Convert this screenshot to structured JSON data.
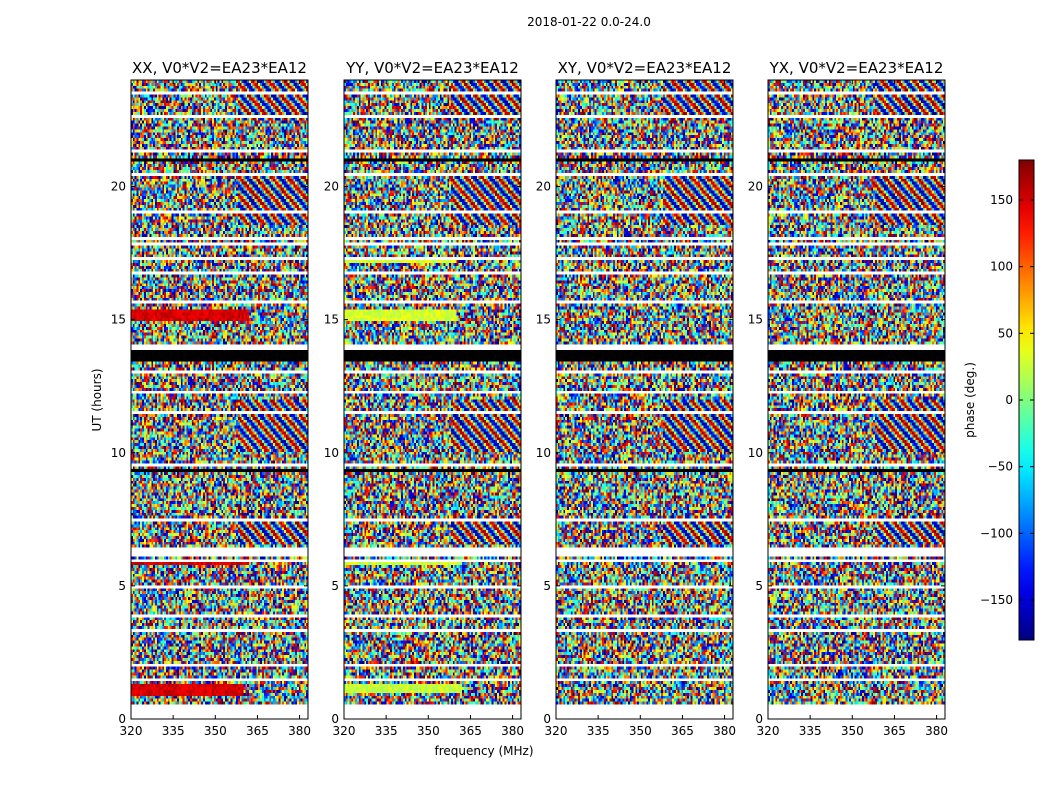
{
  "chart_data": {
    "type": "heatmap",
    "suptitle": "2018-01-22 0.0-24.0",
    "panels": [
      {
        "title": "XX, V0*V2=EA23*EA12",
        "product": "XX"
      },
      {
        "title": "YY, V0*V2=EA23*EA12",
        "product": "YY"
      },
      {
        "title": "XY, V0*V2=EA23*EA12",
        "product": "XY"
      },
      {
        "title": "YX, V0*V2=EA23*EA12",
        "product": "YX"
      }
    ],
    "xlabel": "frequency (MHz)",
    "ylabel": "UT (hours)",
    "xlim": [
      320,
      383
    ],
    "ylim": [
      0,
      24
    ],
    "xticks": [
      320,
      335,
      350,
      365,
      380
    ],
    "yticks": [
      0,
      5,
      10,
      15,
      20
    ],
    "colorbar": {
      "label": "phase (deg.)",
      "range": [
        -180,
        180
      ],
      "ticks": [
        -150,
        -100,
        -50,
        0,
        50,
        100,
        150
      ],
      "tick_labels": [
        "−150",
        "−100",
        "−50",
        "0",
        "50",
        "100",
        "150"
      ],
      "colormap": "jet"
    },
    "data_coverage_hours": [
      0.6,
      24.0
    ],
    "gaps_hours": [
      [
        1.4,
        1.5
      ],
      [
        1.95,
        2.05
      ],
      [
        3.25,
        3.35
      ],
      [
        3.55,
        3.65
      ],
      [
        3.85,
        3.95
      ],
      [
        4.95,
        5.05
      ],
      [
        5.85,
        5.95
      ],
      [
        6.1,
        6.4
      ],
      [
        7.45,
        7.55
      ],
      [
        9.45,
        9.55
      ],
      [
        11.5,
        11.6
      ],
      [
        12.2,
        12.3
      ],
      [
        12.95,
        13.05
      ],
      [
        13.9,
        14.1
      ],
      [
        15.6,
        15.7
      ],
      [
        16.7,
        16.8
      ],
      [
        17.2,
        17.3
      ],
      [
        17.75,
        17.85
      ],
      [
        18.05,
        18.15
      ],
      [
        19.0,
        19.1
      ],
      [
        20.4,
        20.5
      ],
      [
        21.25,
        21.35
      ],
      [
        22.55,
        22.65
      ],
      [
        23.45,
        23.55
      ]
    ],
    "flagged_black_hours": [
      [
        13.4,
        13.8
      ],
      [
        9.3,
        9.38
      ],
      [
        4.9,
        4.95
      ],
      [
        1.6,
        1.65
      ],
      [
        20.95,
        21.0
      ],
      [
        21.55,
        21.6
      ]
    ],
    "structured_bands": [
      {
        "panel": "XX",
        "t": [
          15.0,
          15.4
        ],
        "f": [
          320,
          362
        ],
        "phase": 150
      },
      {
        "panel": "XX",
        "t": [
          0.9,
          1.3
        ],
        "f": [
          320,
          360
        ],
        "phase": 150
      },
      {
        "panel": "XX",
        "t": [
          3.8,
          3.95
        ],
        "f": [
          320,
          362
        ],
        "phase": 150
      },
      {
        "panel": "XX",
        "t": [
          5.75,
          5.85
        ],
        "f": [
          320,
          362
        ],
        "phase": 150
      },
      {
        "panel": "XX",
        "t": [
          9.3,
          9.42
        ],
        "f": [
          320,
          383
        ],
        "phase": 160
      },
      {
        "panel": "YY",
        "t": [
          15.0,
          15.4
        ],
        "f": [
          320,
          360
        ],
        "phase": 30
      },
      {
        "panel": "YY",
        "t": [
          1.0,
          1.35
        ],
        "f": [
          320,
          362
        ],
        "phase": 25
      },
      {
        "panel": "YY",
        "t": [
          5.75,
          5.85
        ],
        "f": [
          320,
          362
        ],
        "phase": 30
      },
      {
        "panel": "YY",
        "t": [
          17.1,
          17.25
        ],
        "f": [
          320,
          360
        ],
        "phase": 30
      }
    ]
  }
}
